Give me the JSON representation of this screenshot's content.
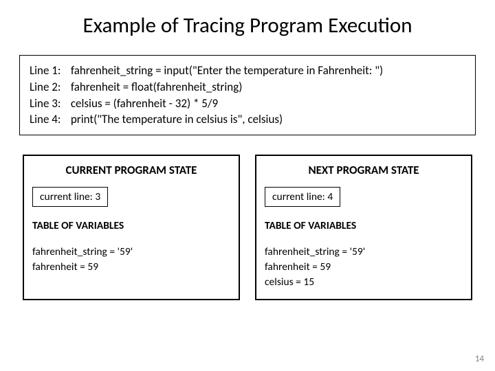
{
  "title": "Example of Tracing Program Execution",
  "code": {
    "line1_label": "Line 1:",
    "line1_code": "fahrenheit_string = input(\"Enter the temperature in Fahrenheit: \")",
    "line2_label": "Line 2:",
    "line2_code": "fahrenheit = float(fahrenheit_string)",
    "line3_label": "Line 3:",
    "line3_code": "celsius = (fahrenheit - 32) * 5/9",
    "line4_label": "Line 4:",
    "line4_code": "print(\"The temperature in celsius is\", celsius)"
  },
  "current_state": {
    "header": "CURRENT PROGRAM STATE",
    "current_line": "current line: 3",
    "table_label": "TABLE OF VARIABLES",
    "var1": "fahrenheit_string = '59'",
    "var2": "fahrenheit = 59",
    "var3": ""
  },
  "next_state": {
    "header": "NEXT PROGRAM STATE",
    "current_line": "current line: 4",
    "table_label": "TABLE OF VARIABLES",
    "var1": "fahrenheit_string = '59'",
    "var2": "fahrenheit = 59",
    "var3": "celsius = 15"
  },
  "page_number": "14",
  "colors": {
    "background": "#ffffff",
    "text": "#000000",
    "border": "#000000",
    "page_num": "#808080"
  }
}
